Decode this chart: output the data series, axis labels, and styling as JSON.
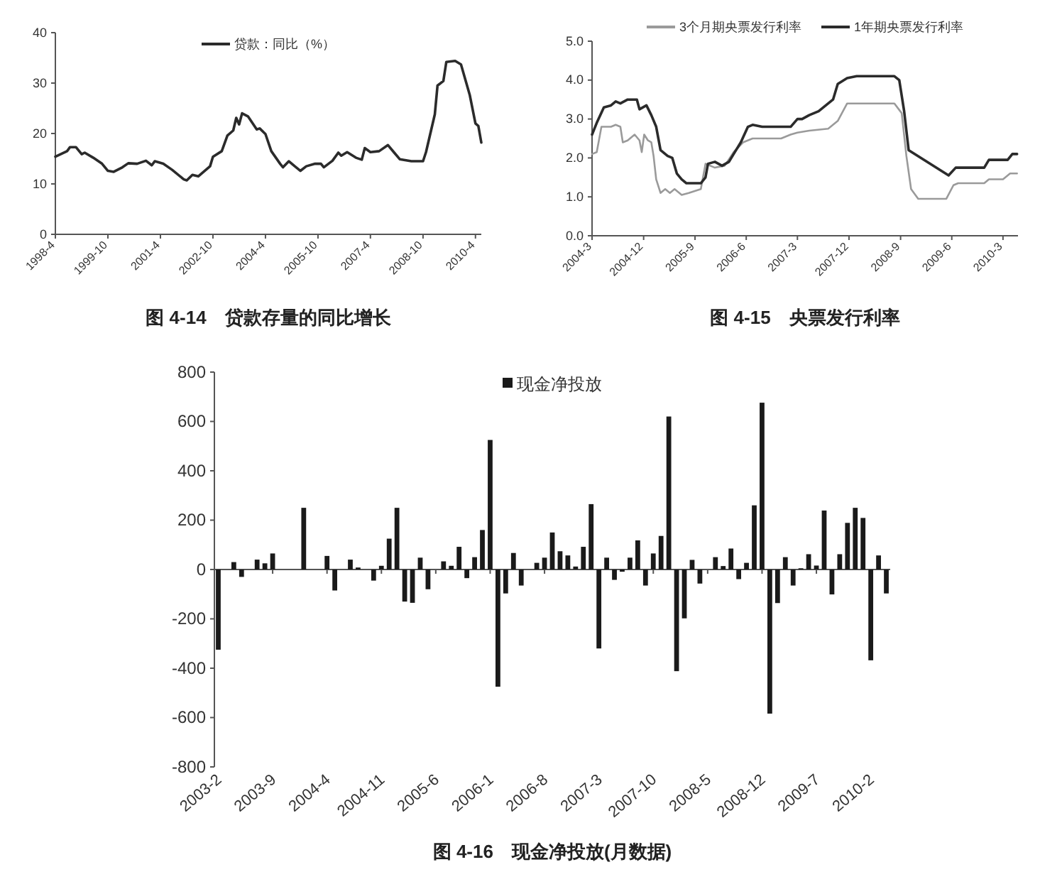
{
  "chart_data": [
    {
      "type": "line",
      "title": "图 4-14　贷款存量的同比增长",
      "legend": "top",
      "xlim": [
        "1998-04",
        "2010-06"
      ],
      "xticks": [
        {
          "value": "1998-04",
          "label": "1998-4"
        },
        {
          "value": "1999-10",
          "label": "1999-10"
        },
        {
          "value": "2001-04",
          "label": "2001-4"
        },
        {
          "value": "2002-10",
          "label": "2002-10"
        },
        {
          "value": "2004-04",
          "label": "2004-4"
        },
        {
          "value": "2005-10",
          "label": "2005-10"
        },
        {
          "value": "2007-04",
          "label": "2007-4"
        },
        {
          "value": "2008-10",
          "label": "2008-10"
        },
        {
          "value": "2010-04",
          "label": "2010-4"
        }
      ],
      "ylim": [
        0,
        40
      ],
      "yticks": [
        0,
        10,
        20,
        30,
        40
      ],
      "series": [
        {
          "name": "贷款：同比（%）",
          "color": "#2b2b2b",
          "x": [
            "1998-04",
            "1998-08",
            "1998-09",
            "1998-11",
            "1999-01",
            "1999-02",
            "1999-05",
            "1999-08",
            "1999-10",
            "1999-12",
            "2000-03",
            "2000-05",
            "2000-08",
            "2000-11",
            "2001-01",
            "2001-02",
            "2001-05",
            "2001-08",
            "2001-12",
            "2002-01",
            "2002-03",
            "2002-05",
            "2002-09",
            "2002-10",
            "2003-01",
            "2003-03",
            "2003-05",
            "2003-06",
            "2003-07",
            "2003-08",
            "2003-10",
            "2004-01",
            "2004-02",
            "2004-04",
            "2004-06",
            "2004-09",
            "2004-10",
            "2004-12",
            "2005-02",
            "2005-04",
            "2005-06",
            "2005-09",
            "2005-11",
            "2005-12",
            "2006-03",
            "2006-05",
            "2006-06",
            "2006-08",
            "2006-11",
            "2007-01",
            "2007-02",
            "2007-04",
            "2007-07",
            "2007-10",
            "2007-12",
            "2008-02",
            "2008-06",
            "2008-10",
            "2008-11",
            "2009-02",
            "2009-03",
            "2009-05",
            "2009-06",
            "2009-09",
            "2009-11",
            "2010-02",
            "2010-04",
            "2010-05",
            "2010-06"
          ],
          "values": [
            15.4,
            16.5,
            17.3,
            17.3,
            15.9,
            16.2,
            15.2,
            14.0,
            12.6,
            12.4,
            13.3,
            14.1,
            14.0,
            14.6,
            13.7,
            14.5,
            14.0,
            12.8,
            10.9,
            10.7,
            11.8,
            11.5,
            13.5,
            15.4,
            16.5,
            19.6,
            20.6,
            23.1,
            21.8,
            24.0,
            23.4,
            20.8,
            21.0,
            19.9,
            16.5,
            14.0,
            13.3,
            14.5,
            13.5,
            12.6,
            13.5,
            14.0,
            14.0,
            13.3,
            14.6,
            16.2,
            15.6,
            16.3,
            15.2,
            14.8,
            17.1,
            16.3,
            16.5,
            17.7,
            16.3,
            14.9,
            14.5,
            14.5,
            16.3,
            23.8,
            29.5,
            30.4,
            34.2,
            34.4,
            33.7,
            27.6,
            22.0,
            21.5,
            18.2
          ]
        }
      ]
    },
    {
      "type": "line",
      "title": "图 4-15　央票发行利率",
      "legend": "top",
      "xlim": [
        "2004-03-01",
        "2010-05-20"
      ],
      "xticks": [
        {
          "value": "2004-03",
          "label": "2004-3"
        },
        {
          "value": "2004-12",
          "label": "2004-12"
        },
        {
          "value": "2005-09",
          "label": "2005-9"
        },
        {
          "value": "2006-06",
          "label": "2006-6"
        },
        {
          "value": "2007-03",
          "label": "2007-3"
        },
        {
          "value": "2007-12",
          "label": "2007-12"
        },
        {
          "value": "2008-09",
          "label": "2008-9"
        },
        {
          "value": "2009-06",
          "label": "2009-6"
        },
        {
          "value": "2010-03",
          "label": "2010-3"
        }
      ],
      "ylim": [
        0,
        5
      ],
      "yticks": [
        {
          "value": 0,
          "label": "0.0"
        },
        {
          "value": 1,
          "label": "1.0"
        },
        {
          "value": 2,
          "label": "2.0"
        },
        {
          "value": 3,
          "label": "3.0"
        },
        {
          "value": 4,
          "label": "4.0"
        },
        {
          "value": 5,
          "label": "5.0"
        }
      ],
      "series": [
        {
          "name": "3个月期央票发行利率",
          "color": "#9a9a9a",
          "x": [
            "2004-03-01",
            "2004-03-26",
            "2004-04-20",
            "2004-06-10",
            "2004-07-05",
            "2004-07-30",
            "2004-08-12",
            "2004-09-07",
            "2004-10-14",
            "2004-11-09",
            "2004-11-21",
            "2004-12-04",
            "2004-12-24",
            "2005-01-11",
            "2005-01-23",
            "2005-02-06",
            "2005-03-01",
            "2005-03-26",
            "2005-04-20",
            "2005-05-15",
            "2005-06-22",
            "2005-07-30",
            "2005-10-02",
            "2005-10-27",
            "2005-12-16",
            "2006-02-06",
            "2006-03-26",
            "2006-05-15",
            "2006-07-05",
            "2006-12-04",
            "2007-01-24",
            "2007-03-01",
            "2007-05-03",
            "2007-08-12",
            "2007-10-02",
            "2007-11-21",
            "2008-07-30",
            "2008-09-07",
            "2008-10-02",
            "2008-10-27",
            "2008-12-04",
            "2009-05-03",
            "2009-06-10",
            "2009-07-05",
            "2009-11-21",
            "2009-12-16",
            "2010-03-01",
            "2010-04-08",
            "2010-05-15"
          ],
          "values": [
            2.1,
            2.15,
            2.8,
            2.8,
            2.85,
            2.8,
            2.4,
            2.45,
            2.6,
            2.45,
            2.15,
            2.6,
            2.45,
            2.4,
            2.05,
            1.45,
            1.1,
            1.2,
            1.1,
            1.2,
            1.05,
            1.1,
            1.2,
            1.85,
            1.75,
            1.8,
            2.15,
            2.4,
            2.5,
            2.5,
            2.6,
            2.65,
            2.7,
            2.75,
            2.95,
            3.4,
            3.4,
            3.15,
            2.05,
            1.2,
            0.95,
            0.95,
            1.3,
            1.35,
            1.35,
            1.45,
            1.45,
            1.6,
            1.6
          ]
        },
        {
          "name": "1年期央票发行利率",
          "color": "#2b2b2b",
          "x": [
            "2004-03-01",
            "2004-03-26",
            "2004-05-03",
            "2004-06-10",
            "2004-07-05",
            "2004-07-30",
            "2004-09-07",
            "2004-10-26",
            "2004-11-09",
            "2004-12-16",
            "2005-01-11",
            "2005-02-06",
            "2005-03-01",
            "2005-04-08",
            "2005-05-03",
            "2005-05-27",
            "2005-06-22",
            "2005-07-17",
            "2005-10-02",
            "2005-10-27",
            "2005-11-09",
            "2005-12-16",
            "2006-01-23",
            "2006-03-01",
            "2006-03-26",
            "2006-05-03",
            "2006-06-10",
            "2006-07-05",
            "2006-08-25",
            "2007-01-24",
            "2007-03-01",
            "2007-03-26",
            "2007-05-03",
            "2007-06-22",
            "2007-08-25",
            "2007-09-07",
            "2007-10-02",
            "2007-11-21",
            "2008-01-11",
            "2008-07-30",
            "2008-08-25",
            "2008-09-20",
            "2008-10-14",
            "2009-05-15",
            "2009-06-22",
            "2009-11-21",
            "2009-12-16",
            "2010-03-26",
            "2010-04-20",
            "2010-05-15"
          ],
          "values": [
            2.6,
            2.9,
            3.3,
            3.35,
            3.45,
            3.4,
            3.5,
            3.5,
            3.25,
            3.35,
            3.1,
            2.8,
            2.2,
            2.05,
            2.0,
            1.6,
            1.45,
            1.35,
            1.35,
            1.5,
            1.85,
            1.9,
            1.8,
            1.9,
            2.1,
            2.4,
            2.8,
            2.85,
            2.8,
            2.8,
            3.0,
            3.0,
            3.1,
            3.2,
            3.45,
            3.5,
            3.9,
            4.05,
            4.1,
            4.1,
            4.0,
            3.2,
            2.2,
            1.55,
            1.75,
            1.75,
            1.95,
            1.95,
            2.1,
            2.1
          ]
        }
      ]
    },
    {
      "type": "bar",
      "title": "图 4-16　现金净投放(月数据)",
      "legend": "top",
      "categories": [
        "2003-2",
        null,
        null,
        null,
        null,
        null,
        null,
        "2003-9",
        null,
        null,
        null,
        null,
        null,
        null,
        "2004-4",
        null,
        null,
        null,
        null,
        null,
        null,
        "2004-11",
        null,
        null,
        null,
        null,
        null,
        null,
        "2005-6",
        null,
        null,
        null,
        null,
        null,
        null,
        "2006-1",
        null,
        null,
        null,
        null,
        null,
        null,
        "2006-8",
        null,
        null,
        null,
        null,
        null,
        null,
        "2007-3",
        null,
        null,
        null,
        null,
        null,
        null,
        "2007-10",
        null,
        null,
        null,
        null,
        null,
        null,
        "2008-5",
        null,
        null,
        null,
        null,
        null,
        null,
        "2008-12",
        null,
        null,
        null,
        null,
        null,
        null,
        "2009-7",
        null,
        null,
        null,
        null,
        null,
        null,
        "2010-2",
        null,
        null
      ],
      "ylim": [
        -800,
        800
      ],
      "yticks": [
        -800,
        -600,
        -400,
        -200,
        0,
        200,
        400,
        600,
        800
      ],
      "series": [
        {
          "name": "现金净投放",
          "color": "#1a1a1a",
          "values": [
            -325,
            0,
            30,
            -30,
            0,
            40,
            25,
            65,
            0,
            0,
            0,
            250,
            0,
            0,
            55,
            -85,
            0,
            40,
            8,
            0,
            -45,
            15,
            125,
            250,
            -130,
            -135,
            48,
            -80,
            0,
            33,
            15,
            92,
            -35,
            50,
            160,
            525,
            -475,
            -97,
            67,
            -65,
            0,
            27,
            48,
            150,
            74,
            57,
            12,
            92,
            265,
            -320,
            48,
            -42,
            -9,
            48,
            118,
            -65,
            65,
            136,
            620,
            -412,
            -198,
            39,
            -57,
            0,
            50,
            14,
            85,
            -39,
            27,
            260,
            676,
            -584,
            -136,
            50,
            -65,
            5,
            62,
            16,
            239,
            -101,
            62,
            189,
            250,
            209,
            -368,
            57,
            -97
          ]
        }
      ]
    }
  ]
}
